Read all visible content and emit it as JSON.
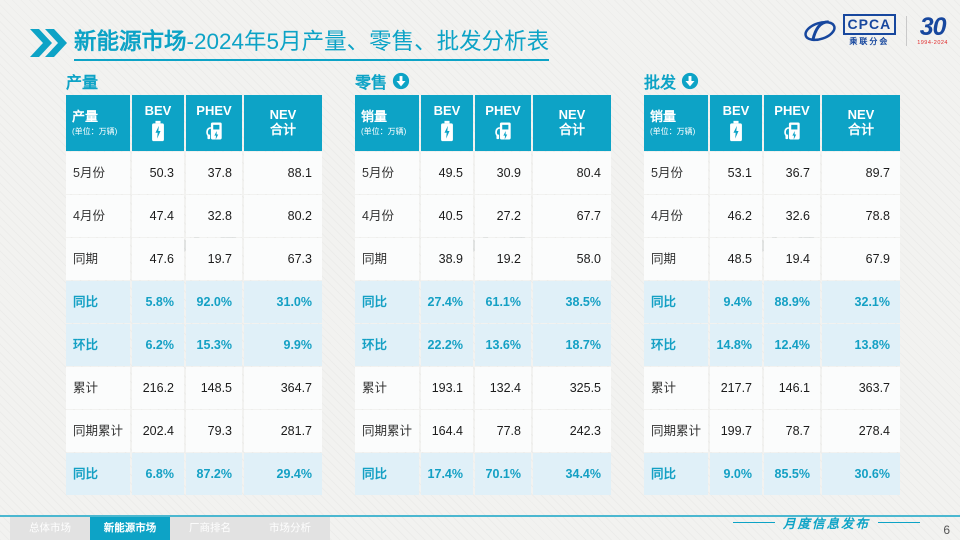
{
  "header": {
    "title_bold": "新能源市场",
    "title_rest": "-2024年5月产量、零售、批发分析表",
    "logo_cpca": "CPCA",
    "logo_cpca_sub": "乘联分会",
    "logo_30": "30",
    "logo_30_years": "1994-2024",
    "watermark": "CPCA"
  },
  "tables": [
    {
      "key": "production",
      "section": "产量",
      "has_arrow": false,
      "unit_label": "产量",
      "unit_sub": "(单位：万辆)",
      "columns": [
        "BEV",
        "PHEV"
      ],
      "nev": {
        "line1": "NEV",
        "line2": "合计"
      },
      "rows": [
        {
          "label": "5月份",
          "values": [
            "50.3",
            "37.8",
            "88.1"
          ],
          "highlight": false
        },
        {
          "label": "4月份",
          "values": [
            "47.4",
            "32.8",
            "80.2"
          ],
          "highlight": false
        },
        {
          "label": "同期",
          "values": [
            "47.6",
            "19.7",
            "67.3"
          ],
          "highlight": false
        },
        {
          "label": "同比",
          "values": [
            "5.8%",
            "92.0%",
            "31.0%"
          ],
          "highlight": true
        },
        {
          "label": "环比",
          "values": [
            "6.2%",
            "15.3%",
            "9.9%"
          ],
          "highlight": true
        },
        {
          "label": "累计",
          "values": [
            "216.2",
            "148.5",
            "364.7"
          ],
          "highlight": false
        },
        {
          "label": "同期累计",
          "values": [
            "202.4",
            "79.3",
            "281.7"
          ],
          "highlight": false
        },
        {
          "label": "同比",
          "values": [
            "6.8%",
            "87.2%",
            "29.4%"
          ],
          "highlight": true
        }
      ]
    },
    {
      "key": "retail",
      "section": "零售",
      "has_arrow": true,
      "unit_label": "销量",
      "unit_sub": "(单位：万辆)",
      "columns": [
        "BEV",
        "PHEV"
      ],
      "nev": {
        "line1": "NEV",
        "line2": "合计"
      },
      "rows": [
        {
          "label": "5月份",
          "values": [
            "49.5",
            "30.9",
            "80.4"
          ],
          "highlight": false
        },
        {
          "label": "4月份",
          "values": [
            "40.5",
            "27.2",
            "67.7"
          ],
          "highlight": false
        },
        {
          "label": "同期",
          "values": [
            "38.9",
            "19.2",
            "58.0"
          ],
          "highlight": false
        },
        {
          "label": "同比",
          "values": [
            "27.4%",
            "61.1%",
            "38.5%"
          ],
          "highlight": true
        },
        {
          "label": "环比",
          "values": [
            "22.2%",
            "13.6%",
            "18.7%"
          ],
          "highlight": true
        },
        {
          "label": "累计",
          "values": [
            "193.1",
            "132.4",
            "325.5"
          ],
          "highlight": false
        },
        {
          "label": "同期累计",
          "values": [
            "164.4",
            "77.8",
            "242.3"
          ],
          "highlight": false
        },
        {
          "label": "同比",
          "values": [
            "17.4%",
            "70.1%",
            "34.4%"
          ],
          "highlight": true
        }
      ]
    },
    {
      "key": "wholesale",
      "section": "批发",
      "has_arrow": true,
      "unit_label": "销量",
      "unit_sub": "(单位：万辆)",
      "columns": [
        "BEV",
        "PHEV"
      ],
      "nev": {
        "line1": "NEV",
        "line2": "合计"
      },
      "rows": [
        {
          "label": "5月份",
          "values": [
            "53.1",
            "36.7",
            "89.7"
          ],
          "highlight": false
        },
        {
          "label": "4月份",
          "values": [
            "46.2",
            "32.6",
            "78.8"
          ],
          "highlight": false
        },
        {
          "label": "同期",
          "values": [
            "48.5",
            "19.4",
            "67.9"
          ],
          "highlight": false
        },
        {
          "label": "同比",
          "values": [
            "9.4%",
            "88.9%",
            "32.1%"
          ],
          "highlight": true
        },
        {
          "label": "环比",
          "values": [
            "14.8%",
            "12.4%",
            "13.8%"
          ],
          "highlight": true
        },
        {
          "label": "累计",
          "values": [
            "217.7",
            "146.1",
            "363.7"
          ],
          "highlight": false
        },
        {
          "label": "同期累计",
          "values": [
            "199.7",
            "78.7",
            "278.4"
          ],
          "highlight": false
        },
        {
          "label": "同比",
          "values": [
            "9.0%",
            "85.5%",
            "30.6%"
          ],
          "highlight": true
        }
      ]
    }
  ],
  "footer": {
    "tabs": [
      {
        "key": "overall-market",
        "label": "总体市场",
        "active": false
      },
      {
        "key": "nev-market",
        "label": "新能源市场",
        "active": true
      },
      {
        "key": "oem-ranking",
        "label": "厂商排名",
        "active": false
      },
      {
        "key": "market-analysis",
        "label": "市场分析",
        "active": false
      }
    ],
    "release_label": "月度信息发布",
    "page_number": "6"
  },
  "colors": {
    "accent": "#0da3c6",
    "hl_bg": "#e0f0f8",
    "hl_text": "#14a0c4",
    "row_bg": "#fbfcfc",
    "tab_inactive": "#e2e2e2",
    "logo_blue": "#17479e",
    "logo_red": "#e02a2a",
    "bg": "#f2f2f0"
  }
}
